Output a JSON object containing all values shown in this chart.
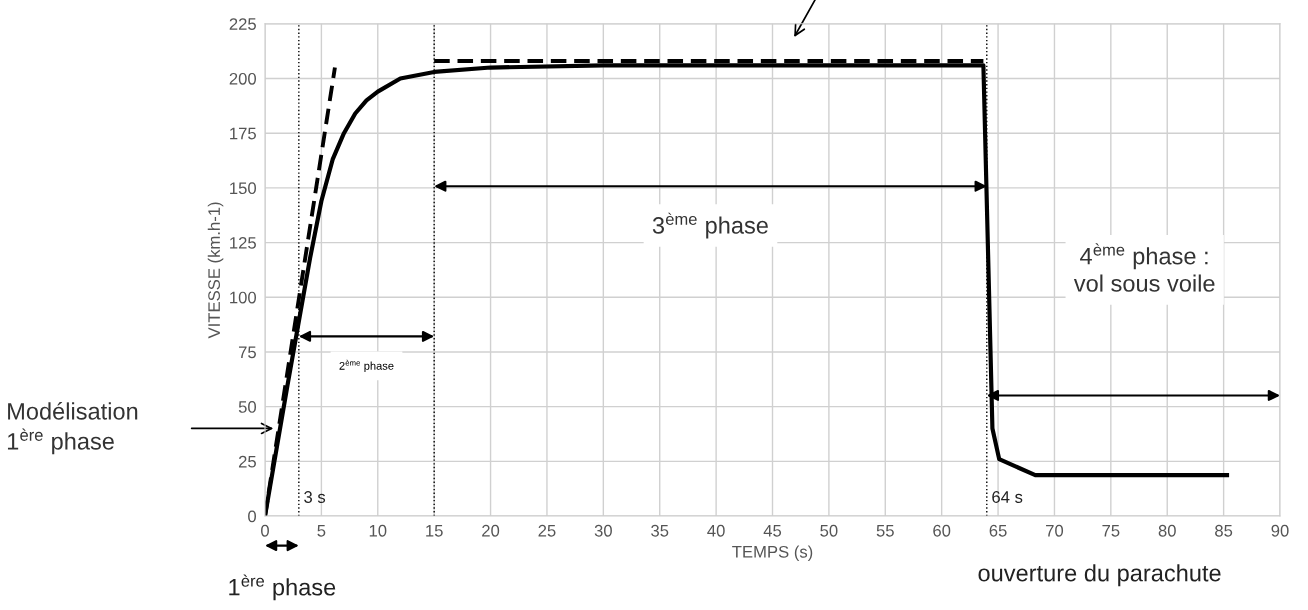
{
  "chart_data": {
    "type": "line",
    "xlabel": "TEMPS (s)",
    "ylabel": "VITESSE (km.h-1)",
    "xlim": [
      0,
      90
    ],
    "ylim": [
      0,
      225
    ],
    "xticks": [
      0,
      5,
      10,
      15,
      20,
      25,
      30,
      35,
      40,
      45,
      50,
      55,
      60,
      65,
      70,
      75,
      80,
      85,
      90
    ],
    "yticks": [
      0,
      25,
      50,
      75,
      100,
      125,
      150,
      175,
      200,
      225
    ],
    "grid": true,
    "series": [
      {
        "color": "#000000",
        "line_style": "solid",
        "x": [
          0,
          1,
          2,
          3,
          4,
          5,
          6,
          7,
          8,
          9,
          10,
          12,
          15,
          20,
          30,
          63.7,
          64.5,
          65.1,
          68.3,
          85.3
        ],
        "values": [
          0,
          30,
          60,
          89,
          118,
          144,
          163,
          175,
          184,
          190,
          194,
          200,
          203,
          205,
          206,
          206,
          40,
          26,
          18.7,
          18.7
        ]
      },
      {
        "color": "#000000",
        "line_style": "dashed",
        "x": [
          0,
          6.2
        ],
        "values": [
          0,
          205
        ]
      },
      {
        "color": "#000000",
        "line_style": "dashed",
        "x": [
          15,
          63.7
        ],
        "values": [
          208,
          208
        ]
      }
    ],
    "ref_lines": [
      {
        "axis": "x",
        "value": 3,
        "label": "3 s",
        "line_style": "dotted"
      },
      {
        "axis": "x",
        "value": 15,
        "label": null,
        "line_style": "dotted"
      },
      {
        "axis": "x",
        "value": 64,
        "label": "64 s",
        "line_style": "dotted"
      }
    ],
    "annotations": [
      "Modélisation\n1$^{ère}$ phase",
      "2$^{ème}$ phase",
      "3$^{ème}$ phase",
      "4$^{ème}$ phase :\nvol sous voile",
      "1$^{ère}$ phase",
      "ouverture du parachute"
    ]
  }
}
